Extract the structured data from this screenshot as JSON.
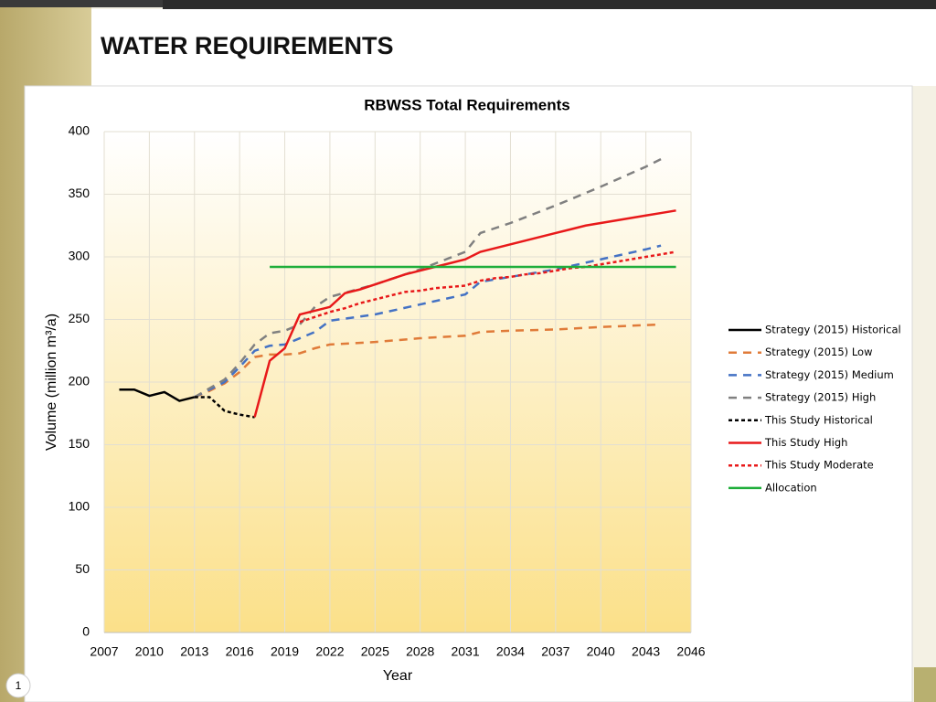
{
  "slide": {
    "title": "WATER REQUIREMENTS",
    "number": "1"
  },
  "chart_data": {
    "type": "line",
    "title": "RBWSS Total Requirements",
    "x_label": "Year",
    "y_label": "Volume (million m³/a)",
    "xlim": [
      2007,
      2046
    ],
    "xticks": [
      2007,
      2010,
      2013,
      2016,
      2019,
      2022,
      2025,
      2028,
      2031,
      2034,
      2037,
      2040,
      2043,
      2046
    ],
    "ylim": [
      0,
      400
    ],
    "yticks": [
      0,
      50,
      100,
      150,
      200,
      250,
      300,
      350,
      400
    ],
    "grid": true,
    "legend": "right",
    "series": [
      {
        "name": "Strategy (2015) Historical",
        "color": "#000000",
        "dash": "solid",
        "x": [
          2008,
          2009,
          2010,
          2011,
          2012,
          2013
        ],
        "values": [
          194,
          194,
          189,
          192,
          185,
          188
        ]
      },
      {
        "name": "Strategy (2015) Low",
        "color": "#e07b39",
        "dash": "long",
        "x": [
          2013,
          2014,
          2015,
          2016,
          2017,
          2018,
          2019,
          2020,
          2021,
          2022,
          2025,
          2028,
          2031,
          2032,
          2034,
          2037,
          2040,
          2044
        ],
        "values": [
          188,
          193,
          199,
          208,
          220,
          222,
          222,
          223,
          227,
          230,
          232,
          235,
          237,
          240,
          241,
          242,
          244,
          246
        ]
      },
      {
        "name": "Strategy (2015) Medium",
        "color": "#4472c4",
        "dash": "long",
        "x": [
          2013,
          2014,
          2015,
          2016,
          2017,
          2018,
          2019,
          2020,
          2021,
          2022,
          2025,
          2028,
          2031,
          2032,
          2034,
          2037,
          2040,
          2043,
          2044
        ],
        "values": [
          188,
          194,
          200,
          212,
          225,
          229,
          230,
          235,
          240,
          249,
          254,
          262,
          270,
          280,
          284,
          290,
          298,
          306,
          309
        ]
      },
      {
        "name": "Strategy (2015) High",
        "color": "#808080",
        "dash": "long",
        "x": [
          2013,
          2014,
          2015,
          2016,
          2017,
          2018,
          2019,
          2020,
          2021,
          2022,
          2025,
          2028,
          2031,
          2032,
          2034,
          2037,
          2040,
          2043,
          2044
        ],
        "values": [
          188,
          195,
          202,
          215,
          230,
          239,
          241,
          246,
          260,
          268,
          278,
          290,
          304,
          319,
          327,
          341,
          356,
          372,
          378
        ]
      },
      {
        "name": "This Study Historical",
        "color": "#000000",
        "dash": "short",
        "x": [
          2013,
          2014,
          2015,
          2016,
          2017
        ],
        "values": [
          188,
          188,
          177,
          174,
          172
        ]
      },
      {
        "name": "This Study High",
        "color": "#e8191a",
        "dash": "solid",
        "x": [
          2017,
          2018,
          2019,
          2020,
          2021,
          2022,
          2023,
          2024,
          2025,
          2026,
          2027,
          2028,
          2029,
          2030,
          2031,
          2032,
          2033,
          2034,
          2035,
          2036,
          2037,
          2038,
          2039,
          2040,
          2041,
          2042,
          2043,
          2044,
          2045
        ],
        "values": [
          172,
          217,
          227,
          254,
          257,
          260,
          271,
          274,
          278,
          282,
          286,
          289,
          292,
          295,
          298,
          304,
          307,
          310,
          313,
          316,
          319,
          322,
          325,
          327,
          329,
          331,
          333,
          335,
          337
        ]
      },
      {
        "name": "This Study Moderate",
        "color": "#e8191a",
        "dash": "short",
        "x": [
          2020,
          2021,
          2022,
          2023,
          2024,
          2025,
          2026,
          2027,
          2028,
          2029,
          2030,
          2031,
          2032,
          2033,
          2034,
          2035,
          2036,
          2037,
          2038,
          2039,
          2040,
          2041,
          2042,
          2043,
          2044,
          2045
        ],
        "values": [
          248,
          252,
          256,
          259,
          263,
          266,
          269,
          272,
          273,
          275,
          276,
          277,
          281,
          283,
          284,
          286,
          287,
          289,
          291,
          292,
          294,
          296,
          298,
          300,
          302,
          304
        ]
      },
      {
        "name": "Allocation",
        "color": "#1fae3a",
        "dash": "solid",
        "x": [
          2018,
          2045
        ],
        "values": [
          292,
          292
        ]
      }
    ]
  }
}
